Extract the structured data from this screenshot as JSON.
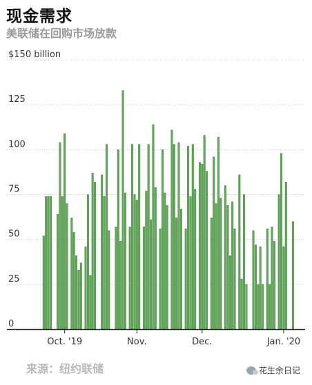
{
  "header": {
    "title": "现金需求",
    "subtitle": "美联储在回购市场放款"
  },
  "footer": {
    "source": "来源：纽约联储",
    "watermark": "花生余日记"
  },
  "colors": {
    "bar": "#62a85a",
    "bar_edge": "#3f7e38",
    "grid": "#c8c8c8",
    "axis": "#222222"
  },
  "chart_data": {
    "type": "bar",
    "ylim": [
      0,
      150
    ],
    "y_ticks": [
      {
        "value": 150,
        "label": "$150 billion"
      },
      {
        "value": 125,
        "label": "125"
      },
      {
        "value": 100,
        "label": "100"
      },
      {
        "value": 75,
        "label": "75"
      },
      {
        "value": 50,
        "label": "50"
      },
      {
        "value": 25,
        "label": "25"
      },
      {
        "value": 0,
        "label": "0"
      }
    ],
    "x_ticks": [
      {
        "index": 9,
        "label": "Oct. '19"
      },
      {
        "index": 40,
        "label": "Nov."
      },
      {
        "index": 68,
        "label": "Dec."
      },
      {
        "index": 103,
        "label": "Jan. '20"
      }
    ],
    "x_count": 116,
    "points": [
      {
        "i": 0,
        "v": 52
      },
      {
        "i": 1,
        "v": 74
      },
      {
        "i": 2,
        "v": 74
      },
      {
        "i": 3,
        "v": 74
      },
      {
        "i": 6,
        "v": 64
      },
      {
        "i": 7,
        "v": 104
      },
      {
        "i": 8,
        "v": 74
      },
      {
        "i": 9,
        "v": 109
      },
      {
        "i": 10,
        "v": 70
      },
      {
        "i": 12,
        "v": 62
      },
      {
        "i": 13,
        "v": 54
      },
      {
        "i": 14,
        "v": 41
      },
      {
        "i": 15,
        "v": 33
      },
      {
        "i": 16,
        "v": 37
      },
      {
        "i": 18,
        "v": 46
      },
      {
        "i": 19,
        "v": 75
      },
      {
        "i": 20,
        "v": 30
      },
      {
        "i": 21,
        "v": 87
      },
      {
        "i": 22,
        "v": 82
      },
      {
        "i": 25,
        "v": 86
      },
      {
        "i": 26,
        "v": 74
      },
      {
        "i": 27,
        "v": 103
      },
      {
        "i": 28,
        "v": 55
      },
      {
        "i": 31,
        "v": 57
      },
      {
        "i": 32,
        "v": 100
      },
      {
        "i": 33,
        "v": 49
      },
      {
        "i": 34,
        "v": 133
      },
      {
        "i": 35,
        "v": 76
      },
      {
        "i": 37,
        "v": 57
      },
      {
        "i": 38,
        "v": 103
      },
      {
        "i": 39,
        "v": 75
      },
      {
        "i": 40,
        "v": 72
      },
      {
        "i": 41,
        "v": 103
      },
      {
        "i": 43,
        "v": 57
      },
      {
        "i": 44,
        "v": 77
      },
      {
        "i": 45,
        "v": 103
      },
      {
        "i": 46,
        "v": 61
      },
      {
        "i": 47,
        "v": 114
      },
      {
        "i": 48,
        "v": 79
      },
      {
        "i": 50,
        "v": 56
      },
      {
        "i": 51,
        "v": 100
      },
      {
        "i": 52,
        "v": 76
      },
      {
        "i": 53,
        "v": 69
      },
      {
        "i": 55,
        "v": 111
      },
      {
        "i": 56,
        "v": 103
      },
      {
        "i": 57,
        "v": 62
      },
      {
        "i": 58,
        "v": 104
      },
      {
        "i": 59,
        "v": 67
      },
      {
        "i": 61,
        "v": 56
      },
      {
        "i": 62,
        "v": 102
      },
      {
        "i": 63,
        "v": 74
      },
      {
        "i": 64,
        "v": 103
      },
      {
        "i": 65,
        "v": 78
      },
      {
        "i": 67,
        "v": 93
      },
      {
        "i": 68,
        "v": 92
      },
      {
        "i": 69,
        "v": 108
      },
      {
        "i": 70,
        "v": 88
      },
      {
        "i": 72,
        "v": 62
      },
      {
        "i": 73,
        "v": 96
      },
      {
        "i": 74,
        "v": 70
      },
      {
        "i": 75,
        "v": 107
      },
      {
        "i": 76,
        "v": 73
      },
      {
        "i": 78,
        "v": 80
      },
      {
        "i": 79,
        "v": 69
      },
      {
        "i": 80,
        "v": 41
      },
      {
        "i": 81,
        "v": 71
      },
      {
        "i": 82,
        "v": 56
      },
      {
        "i": 84,
        "v": 86
      },
      {
        "i": 85,
        "v": 28
      },
      {
        "i": 86,
        "v": 75
      },
      {
        "i": 87,
        "v": 25
      },
      {
        "i": 90,
        "v": 55
      },
      {
        "i": 91,
        "v": 47
      },
      {
        "i": 92,
        "v": 25
      },
      {
        "i": 93,
        "v": 46
      },
      {
        "i": 94,
        "v": 25
      },
      {
        "i": 96,
        "v": 56
      },
      {
        "i": 97,
        "v": 25
      },
      {
        "i": 98,
        "v": 57
      },
      {
        "i": 99,
        "v": 49
      },
      {
        "i": 101,
        "v": 75
      },
      {
        "i": 102,
        "v": 98
      },
      {
        "i": 103,
        "v": 46
      },
      {
        "i": 104,
        "v": 82
      },
      {
        "i": 107,
        "v": 60
      }
    ]
  }
}
